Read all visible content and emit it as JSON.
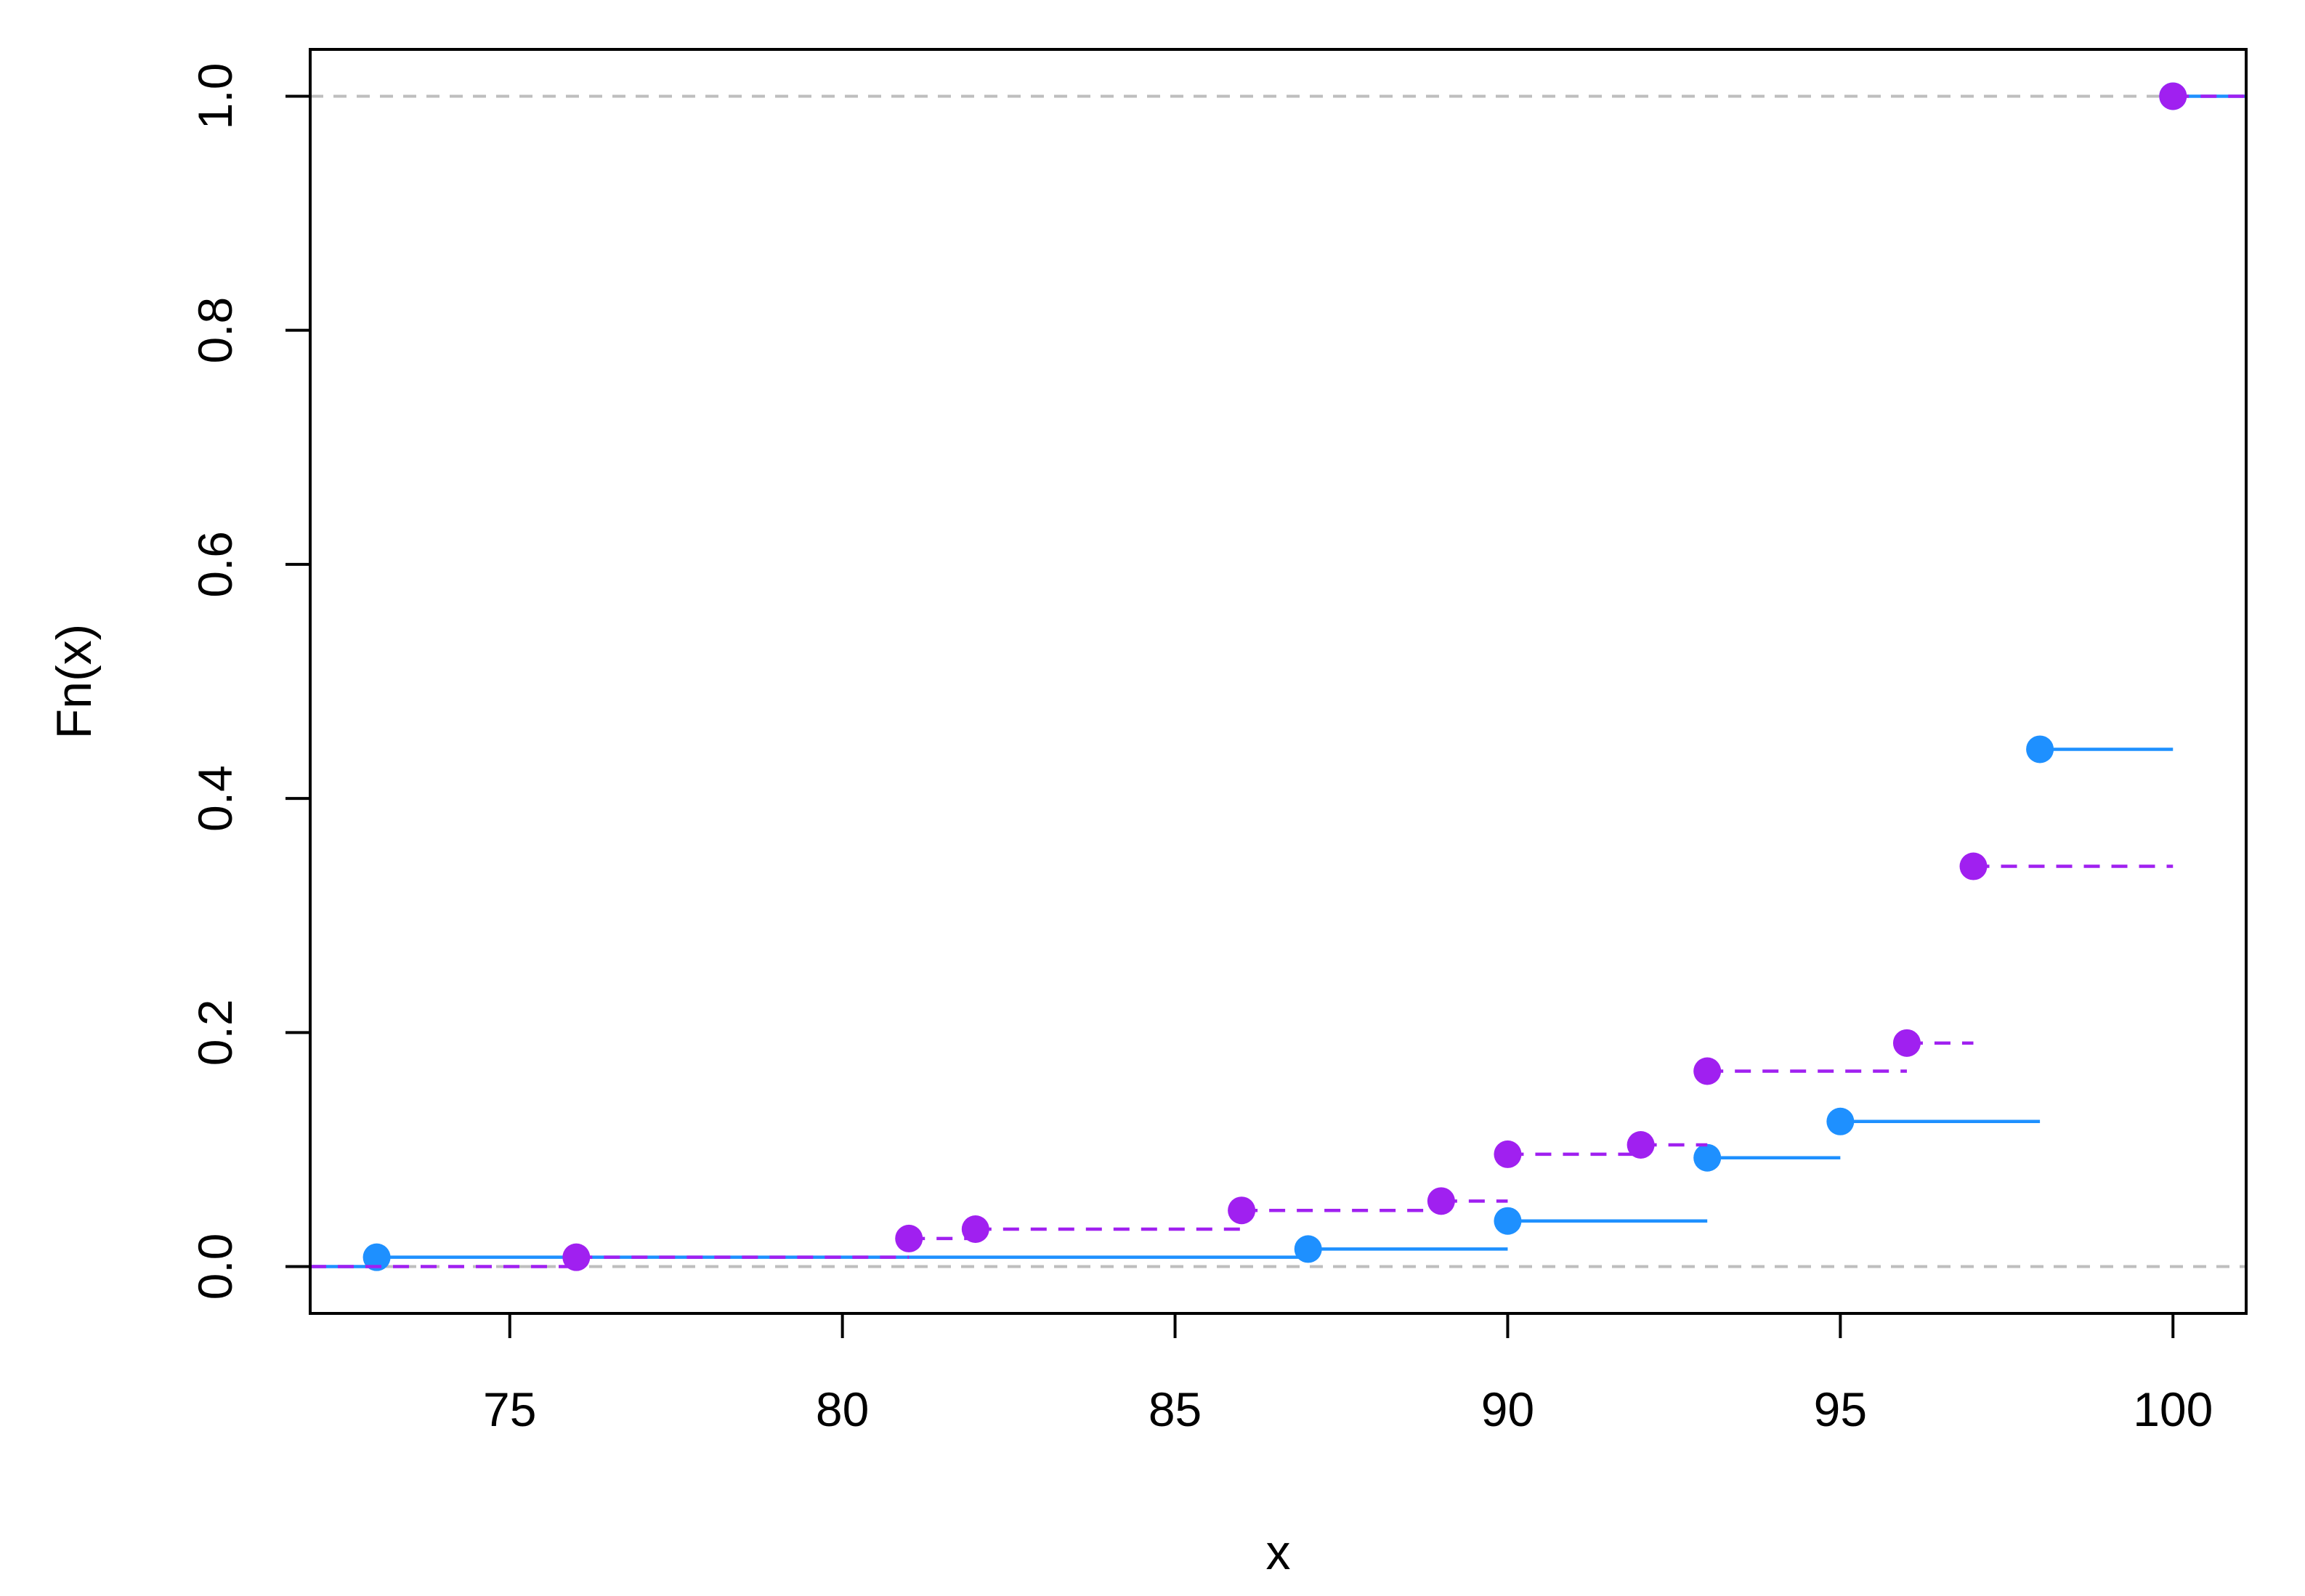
{
  "chart_data": {
    "type": "line",
    "subtype": "ecdf-step",
    "title": "",
    "xlabel": "x",
    "ylabel": "Fn(x)",
    "xlim": [
      72,
      101.1
    ],
    "ylim": [
      -0.04,
      1.04
    ],
    "xticks": [
      "75",
      "80",
      "85",
      "90",
      "95",
      "100"
    ],
    "yticks": [
      "0.0",
      "0.2",
      "0.4",
      "0.6",
      "0.8",
      "1.0"
    ],
    "reference_lines": [
      0,
      1
    ],
    "grid": false,
    "legend": "none",
    "series": [
      {
        "color": "#1E90FF",
        "line_style": "solid",
        "x": [
          73,
          87,
          90,
          93,
          95,
          98,
          100
        ],
        "y": [
          0.008,
          0.015,
          0.039,
          0.093,
          0.124,
          0.442,
          1.0
        ]
      },
      {
        "color": "#A020F0",
        "line_style": "dashed",
        "x": [
          76,
          81,
          82,
          86,
          89,
          90,
          92,
          93,
          96,
          97,
          100
        ],
        "y": [
          0.008,
          0.024,
          0.032,
          0.048,
          0.056,
          0.096,
          0.104,
          0.167,
          0.191,
          0.342,
          1.0
        ]
      }
    ]
  }
}
